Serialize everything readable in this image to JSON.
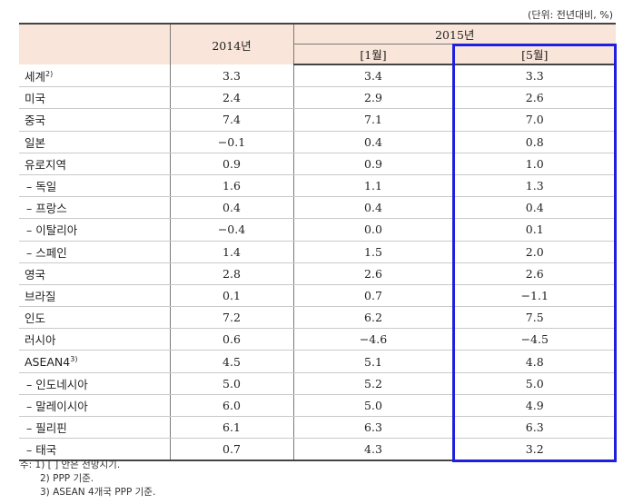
{
  "unit": "(단위: 전년대비, %)",
  "header": {
    "y2014": "2014년",
    "y2015": "2015년",
    "jan": "[1월]",
    "may": "[5월]"
  },
  "rows": [
    {
      "name": "세계",
      "sup": "2)",
      "sub": false,
      "v2014": "3.3",
      "jan": "3.4",
      "may": "3.3"
    },
    {
      "name": "미국",
      "sup": "",
      "sub": false,
      "v2014": "2.4",
      "jan": "2.9",
      "may": "2.6"
    },
    {
      "name": "중국",
      "sup": "",
      "sub": false,
      "v2014": "7.4",
      "jan": "7.1",
      "may": "7.0"
    },
    {
      "name": "일본",
      "sup": "",
      "sub": false,
      "v2014": "−0.1",
      "jan": "0.4",
      "may": "0.8"
    },
    {
      "name": "유로지역",
      "sup": "",
      "sub": false,
      "v2014": "0.9",
      "jan": "0.9",
      "may": "1.0"
    },
    {
      "name": "– 독일",
      "sup": "",
      "sub": true,
      "v2014": "1.6",
      "jan": "1.1",
      "may": "1.3"
    },
    {
      "name": "– 프랑스",
      "sup": "",
      "sub": true,
      "v2014": "0.4",
      "jan": "0.4",
      "may": "0.4"
    },
    {
      "name": "– 이탈리아",
      "sup": "",
      "sub": true,
      "v2014": "−0.4",
      "jan": "0.0",
      "may": "0.1"
    },
    {
      "name": "– 스페인",
      "sup": "",
      "sub": true,
      "v2014": "1.4",
      "jan": "1.5",
      "may": "2.0"
    },
    {
      "name": "영국",
      "sup": "",
      "sub": false,
      "v2014": "2.8",
      "jan": "2.6",
      "may": "2.6"
    },
    {
      "name": "브라질",
      "sup": "",
      "sub": false,
      "v2014": "0.1",
      "jan": "0.7",
      "may": "−1.1"
    },
    {
      "name": "인도",
      "sup": "",
      "sub": false,
      "v2014": "7.2",
      "jan": "6.2",
      "may": "7.5"
    },
    {
      "name": "러시아",
      "sup": "",
      "sub": false,
      "v2014": "0.6",
      "jan": "−4.6",
      "may": "−4.5"
    },
    {
      "name": "ASEAN4",
      "sup": "3)",
      "sub": false,
      "v2014": "4.5",
      "jan": "5.1",
      "may": "4.8"
    },
    {
      "name": "– 인도네시아",
      "sup": "",
      "sub": true,
      "v2014": "5.0",
      "jan": "5.2",
      "may": "5.0"
    },
    {
      "name": "– 말레이시아",
      "sup": "",
      "sub": true,
      "v2014": "6.0",
      "jan": "5.0",
      "may": "4.9"
    },
    {
      "name": "– 필리핀",
      "sup": "",
      "sub": true,
      "v2014": "6.1",
      "jan": "6.3",
      "may": "6.3"
    },
    {
      "name": "– 태국",
      "sup": "",
      "sub": true,
      "v2014": "0.7",
      "jan": "4.3",
      "may": "3.2"
    }
  ],
  "notes": {
    "n1": "주: 1) [ ] 안은 전망시기.",
    "n2": "2) PPP 기준.",
    "n3": "3) ASEAN 4개국 PPP 기준."
  },
  "colors": {
    "header_bg": "#f9e5d9",
    "highlight_border": "#1f1fe0"
  }
}
